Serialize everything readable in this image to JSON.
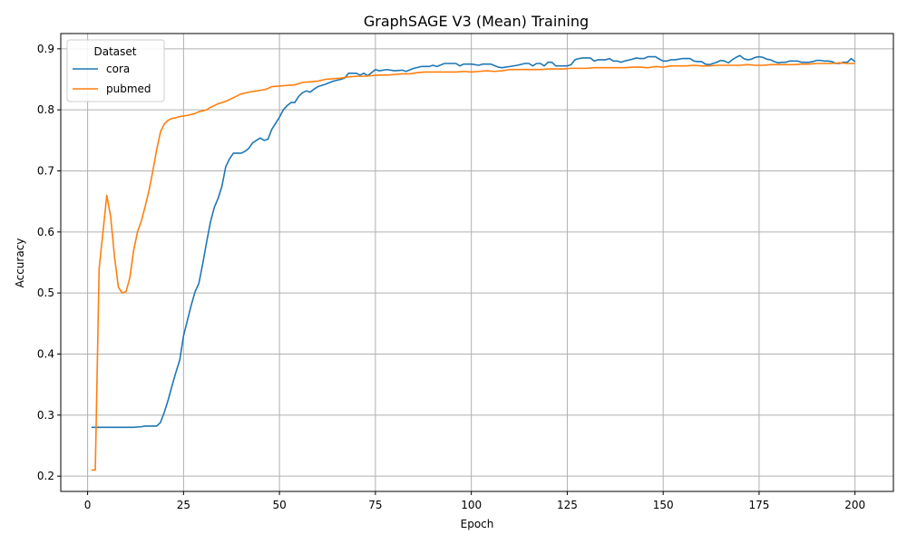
{
  "chart_data": {
    "type": "line",
    "title": "GraphSAGE V3 (Mean) Training",
    "xlabel": "Epoch",
    "ylabel": "Accuracy",
    "xlim": [
      -7,
      210
    ],
    "ylim": [
      0.175,
      0.925
    ],
    "xticks": [
      0,
      25,
      50,
      75,
      100,
      125,
      150,
      175,
      200
    ],
    "yticks": [
      0.2,
      0.3,
      0.4,
      0.5,
      0.6,
      0.7,
      0.8,
      0.9
    ],
    "grid": true,
    "legend": {
      "title": "Dataset",
      "placement": "top-left"
    },
    "series": [
      {
        "name": "cora",
        "color": "#1f77b4",
        "points": [
          [
            1,
            0.28
          ],
          [
            2,
            0.28
          ],
          [
            3,
            0.28
          ],
          [
            5,
            0.28
          ],
          [
            8,
            0.28
          ],
          [
            10,
            0.28
          ],
          [
            12,
            0.28
          ],
          [
            14,
            0.281
          ],
          [
            15,
            0.282
          ],
          [
            17,
            0.282
          ],
          [
            18,
            0.282
          ],
          [
            19,
            0.288
          ],
          [
            20,
            0.305
          ],
          [
            21,
            0.325
          ],
          [
            22,
            0.348
          ],
          [
            23,
            0.37
          ],
          [
            24,
            0.39
          ],
          [
            25,
            0.43
          ],
          [
            26,
            0.455
          ],
          [
            27,
            0.48
          ],
          [
            28,
            0.502
          ],
          [
            29,
            0.516
          ],
          [
            30,
            0.548
          ],
          [
            31,
            0.583
          ],
          [
            32,
            0.616
          ],
          [
            33,
            0.64
          ],
          [
            34,
            0.655
          ],
          [
            35,
            0.675
          ],
          [
            36,
            0.707
          ],
          [
            37,
            0.72
          ],
          [
            38,
            0.729
          ],
          [
            39,
            0.729
          ],
          [
            40,
            0.729
          ],
          [
            41,
            0.732
          ],
          [
            42,
            0.737
          ],
          [
            43,
            0.746
          ],
          [
            44,
            0.75
          ],
          [
            45,
            0.754
          ],
          [
            46,
            0.75
          ],
          [
            47,
            0.752
          ],
          [
            48,
            0.768
          ],
          [
            49,
            0.778
          ],
          [
            50,
            0.788
          ],
          [
            51,
            0.8
          ],
          [
            52,
            0.807
          ],
          [
            53,
            0.812
          ],
          [
            54,
            0.812
          ],
          [
            55,
            0.822
          ],
          [
            56,
            0.828
          ],
          [
            57,
            0.831
          ],
          [
            58,
            0.829
          ],
          [
            59,
            0.834
          ],
          [
            60,
            0.838
          ],
          [
            62,
            0.842
          ],
          [
            64,
            0.847
          ],
          [
            66,
            0.85
          ],
          [
            67,
            0.852
          ],
          [
            68,
            0.86
          ],
          [
            70,
            0.86
          ],
          [
            71,
            0.857
          ],
          [
            72,
            0.86
          ],
          [
            73,
            0.856
          ],
          [
            74,
            0.861
          ],
          [
            75,
            0.866
          ],
          [
            76,
            0.864
          ],
          [
            78,
            0.866
          ],
          [
            80,
            0.864
          ],
          [
            82,
            0.865
          ],
          [
            83,
            0.863
          ],
          [
            85,
            0.868
          ],
          [
            87,
            0.871
          ],
          [
            89,
            0.871
          ],
          [
            90,
            0.873
          ],
          [
            91,
            0.871
          ],
          [
            93,
            0.876
          ],
          [
            95,
            0.876
          ],
          [
            96,
            0.876
          ],
          [
            97,
            0.872
          ],
          [
            98,
            0.875
          ],
          [
            100,
            0.875
          ],
          [
            102,
            0.873
          ],
          [
            103,
            0.875
          ],
          [
            105,
            0.875
          ],
          [
            107,
            0.87
          ],
          [
            108,
            0.869
          ],
          [
            110,
            0.871
          ],
          [
            112,
            0.873
          ],
          [
            114,
            0.876
          ],
          [
            115,
            0.876
          ],
          [
            116,
            0.872
          ],
          [
            117,
            0.876
          ],
          [
            118,
            0.876
          ],
          [
            119,
            0.872
          ],
          [
            120,
            0.878
          ],
          [
            121,
            0.878
          ],
          [
            122,
            0.872
          ],
          [
            124,
            0.872
          ],
          [
            125,
            0.872
          ],
          [
            126,
            0.874
          ],
          [
            127,
            0.882
          ],
          [
            128,
            0.884
          ],
          [
            129,
            0.885
          ],
          [
            130,
            0.885
          ],
          [
            131,
            0.885
          ],
          [
            132,
            0.88
          ],
          [
            133,
            0.882
          ],
          [
            134,
            0.882
          ],
          [
            135,
            0.882
          ],
          [
            136,
            0.884
          ],
          [
            137,
            0.88
          ],
          [
            138,
            0.88
          ],
          [
            139,
            0.878
          ],
          [
            140,
            0.88
          ],
          [
            142,
            0.883
          ],
          [
            143,
            0.885
          ],
          [
            144,
            0.884
          ],
          [
            145,
            0.884
          ],
          [
            146,
            0.887
          ],
          [
            147,
            0.887
          ],
          [
            148,
            0.887
          ],
          [
            149,
            0.883
          ],
          [
            150,
            0.88
          ],
          [
            151,
            0.88
          ],
          [
            152,
            0.882
          ],
          [
            153,
            0.882
          ],
          [
            154,
            0.883
          ],
          [
            155,
            0.884
          ],
          [
            156,
            0.884
          ],
          [
            157,
            0.884
          ],
          [
            158,
            0.88
          ],
          [
            159,
            0.879
          ],
          [
            160,
            0.879
          ],
          [
            161,
            0.875
          ],
          [
            162,
            0.874
          ],
          [
            163,
            0.876
          ],
          [
            164,
            0.878
          ],
          [
            165,
            0.881
          ],
          [
            166,
            0.88
          ],
          [
            167,
            0.877
          ],
          [
            168,
            0.882
          ],
          [
            169,
            0.886
          ],
          [
            170,
            0.889
          ],
          [
            171,
            0.884
          ],
          [
            172,
            0.882
          ],
          [
            173,
            0.883
          ],
          [
            174,
            0.886
          ],
          [
            175,
            0.887
          ],
          [
            176,
            0.886
          ],
          [
            177,
            0.883
          ],
          [
            178,
            0.882
          ],
          [
            179,
            0.879
          ],
          [
            180,
            0.877
          ],
          [
            181,
            0.878
          ],
          [
            182,
            0.878
          ],
          [
            183,
            0.88
          ],
          [
            184,
            0.88
          ],
          [
            185,
            0.88
          ],
          [
            186,
            0.878
          ],
          [
            187,
            0.878
          ],
          [
            188,
            0.878
          ],
          [
            189,
            0.879
          ],
          [
            190,
            0.881
          ],
          [
            191,
            0.881
          ],
          [
            192,
            0.88
          ],
          [
            193,
            0.88
          ],
          [
            194,
            0.879
          ],
          [
            195,
            0.876
          ],
          [
            196,
            0.876
          ],
          [
            197,
            0.878
          ],
          [
            198,
            0.878
          ],
          [
            199,
            0.884
          ],
          [
            200,
            0.879
          ]
        ]
      },
      {
        "name": "pubmed",
        "color": "#ff7f0e",
        "points": [
          [
            1,
            0.21
          ],
          [
            2,
            0.21
          ],
          [
            3,
            0.54
          ],
          [
            4,
            0.6
          ],
          [
            5,
            0.66
          ],
          [
            6,
            0.625
          ],
          [
            7,
            0.56
          ],
          [
            8,
            0.51
          ],
          [
            9,
            0.5
          ],
          [
            10,
            0.502
          ],
          [
            11,
            0.525
          ],
          [
            12,
            0.57
          ],
          [
            13,
            0.6
          ],
          [
            14,
            0.618
          ],
          [
            15,
            0.642
          ],
          [
            16,
            0.668
          ],
          [
            17,
            0.7
          ],
          [
            18,
            0.735
          ],
          [
            19,
            0.764
          ],
          [
            20,
            0.777
          ],
          [
            21,
            0.783
          ],
          [
            22,
            0.786
          ],
          [
            23,
            0.787
          ],
          [
            24,
            0.789
          ],
          [
            26,
            0.791
          ],
          [
            28,
            0.794
          ],
          [
            29,
            0.797
          ],
          [
            31,
            0.8
          ],
          [
            32,
            0.804
          ],
          [
            34,
            0.81
          ],
          [
            35,
            0.812
          ],
          [
            36,
            0.814
          ],
          [
            38,
            0.82
          ],
          [
            39,
            0.823
          ],
          [
            40,
            0.826
          ],
          [
            42,
            0.829
          ],
          [
            44,
            0.831
          ],
          [
            45,
            0.832
          ],
          [
            46,
            0.833
          ],
          [
            47,
            0.835
          ],
          [
            48,
            0.838
          ],
          [
            50,
            0.839
          ],
          [
            52,
            0.84
          ],
          [
            54,
            0.841
          ],
          [
            56,
            0.845
          ],
          [
            58,
            0.846
          ],
          [
            60,
            0.847
          ],
          [
            62,
            0.85
          ],
          [
            64,
            0.851
          ],
          [
            66,
            0.852
          ],
          [
            68,
            0.854
          ],
          [
            70,
            0.855
          ],
          [
            72,
            0.855
          ],
          [
            74,
            0.856
          ],
          [
            76,
            0.857
          ],
          [
            78,
            0.857
          ],
          [
            80,
            0.858
          ],
          [
            82,
            0.859
          ],
          [
            84,
            0.859
          ],
          [
            86,
            0.861
          ],
          [
            88,
            0.862
          ],
          [
            90,
            0.862
          ],
          [
            92,
            0.862
          ],
          [
            94,
            0.862
          ],
          [
            96,
            0.862
          ],
          [
            98,
            0.863
          ],
          [
            100,
            0.862
          ],
          [
            102,
            0.863
          ],
          [
            104,
            0.864
          ],
          [
            106,
            0.863
          ],
          [
            108,
            0.864
          ],
          [
            110,
            0.866
          ],
          [
            112,
            0.866
          ],
          [
            114,
            0.866
          ],
          [
            116,
            0.866
          ],
          [
            118,
            0.866
          ],
          [
            120,
            0.867
          ],
          [
            122,
            0.867
          ],
          [
            124,
            0.867
          ],
          [
            126,
            0.868
          ],
          [
            128,
            0.868
          ],
          [
            130,
            0.868
          ],
          [
            132,
            0.869
          ],
          [
            134,
            0.869
          ],
          [
            136,
            0.869
          ],
          [
            138,
            0.869
          ],
          [
            140,
            0.869
          ],
          [
            142,
            0.87
          ],
          [
            144,
            0.87
          ],
          [
            146,
            0.869
          ],
          [
            148,
            0.871
          ],
          [
            150,
            0.87
          ],
          [
            152,
            0.872
          ],
          [
            154,
            0.872
          ],
          [
            156,
            0.872
          ],
          [
            158,
            0.873
          ],
          [
            160,
            0.872
          ],
          [
            162,
            0.872
          ],
          [
            164,
            0.873
          ],
          [
            166,
            0.873
          ],
          [
            168,
            0.873
          ],
          [
            170,
            0.873
          ],
          [
            172,
            0.874
          ],
          [
            174,
            0.873
          ],
          [
            176,
            0.873
          ],
          [
            178,
            0.874
          ],
          [
            180,
            0.874
          ],
          [
            182,
            0.874
          ],
          [
            184,
            0.874
          ],
          [
            186,
            0.875
          ],
          [
            188,
            0.875
          ],
          [
            190,
            0.876
          ],
          [
            192,
            0.876
          ],
          [
            194,
            0.876
          ],
          [
            196,
            0.877
          ],
          [
            198,
            0.876
          ],
          [
            200,
            0.876
          ]
        ]
      }
    ]
  }
}
